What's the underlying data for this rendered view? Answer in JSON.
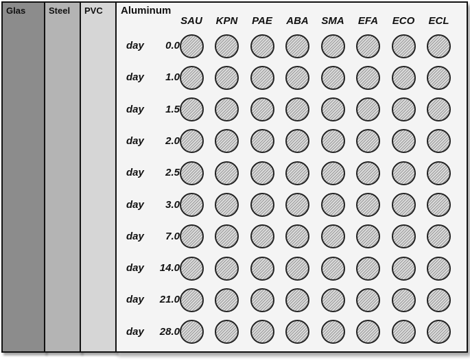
{
  "panels": [
    {
      "id": "glas",
      "label": "Glas"
    },
    {
      "id": "steel",
      "label": "Steel"
    },
    {
      "id": "pvc",
      "label": "PVC"
    },
    {
      "id": "alu",
      "label": "Aluminum"
    }
  ],
  "day_word": "day",
  "columns": [
    "SAU",
    "KPN",
    "PAE",
    "ABA",
    "SMA",
    "EFA",
    "ECO",
    "ECL"
  ],
  "days": [
    "0.0",
    "1.0",
    "1.5",
    "2.0",
    "2.5",
    "3.0",
    "7.0",
    "14.0",
    "21.0",
    "28.0"
  ],
  "colors": {
    "glas": "#8c8c8c",
    "steel": "#b4b4b4",
    "pvc": "#d6d6d6",
    "aluminum": "#f4f4f4"
  }
}
